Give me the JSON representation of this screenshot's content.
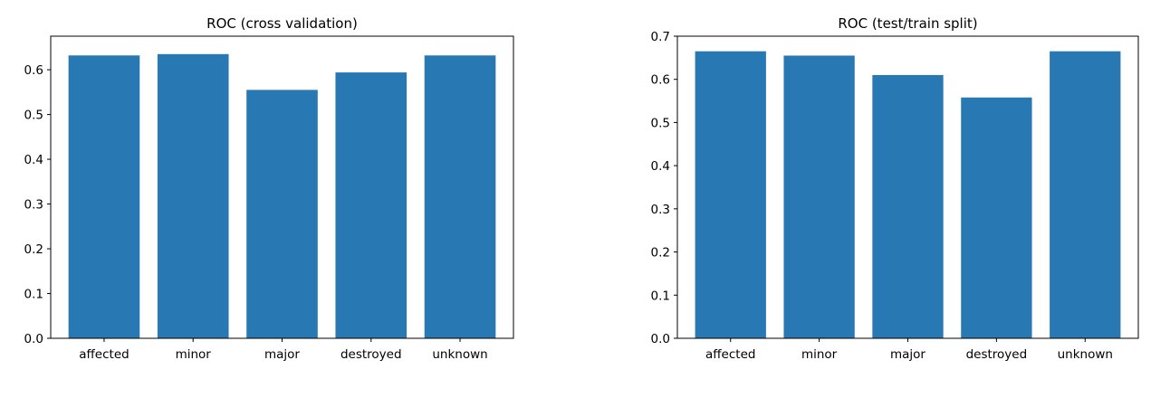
{
  "chart_data": [
    {
      "type": "bar",
      "title": "ROC (cross validation)",
      "xlabel": "",
      "ylabel": "",
      "categories": [
        "affected",
        "minor",
        "major",
        "destroyed",
        "unknown"
      ],
      "values": [
        0.632,
        0.635,
        0.555,
        0.594,
        0.632
      ],
      "ylim": [
        0,
        0.675
      ],
      "yticks": [
        0.0,
        0.1,
        0.2,
        0.3,
        0.4,
        0.5,
        0.6
      ],
      "ytick_labels": [
        "0.0",
        "0.1",
        "0.2",
        "0.3",
        "0.4",
        "0.5",
        "0.6"
      ],
      "bar_color": "#2878b4",
      "grid": false
    },
    {
      "type": "bar",
      "title": "ROC (test/train split)",
      "xlabel": "",
      "ylabel": "",
      "categories": [
        "affected",
        "minor",
        "major",
        "destroyed",
        "unknown"
      ],
      "values": [
        0.665,
        0.655,
        0.61,
        0.558,
        0.665
      ],
      "ylim": [
        0,
        0.7
      ],
      "yticks": [
        0.0,
        0.1,
        0.2,
        0.3,
        0.4,
        0.5,
        0.6,
        0.7
      ],
      "ytick_labels": [
        "0.0",
        "0.1",
        "0.2",
        "0.3",
        "0.4",
        "0.5",
        "0.6",
        "0.7"
      ],
      "bar_color": "#2878b4",
      "grid": false
    }
  ]
}
